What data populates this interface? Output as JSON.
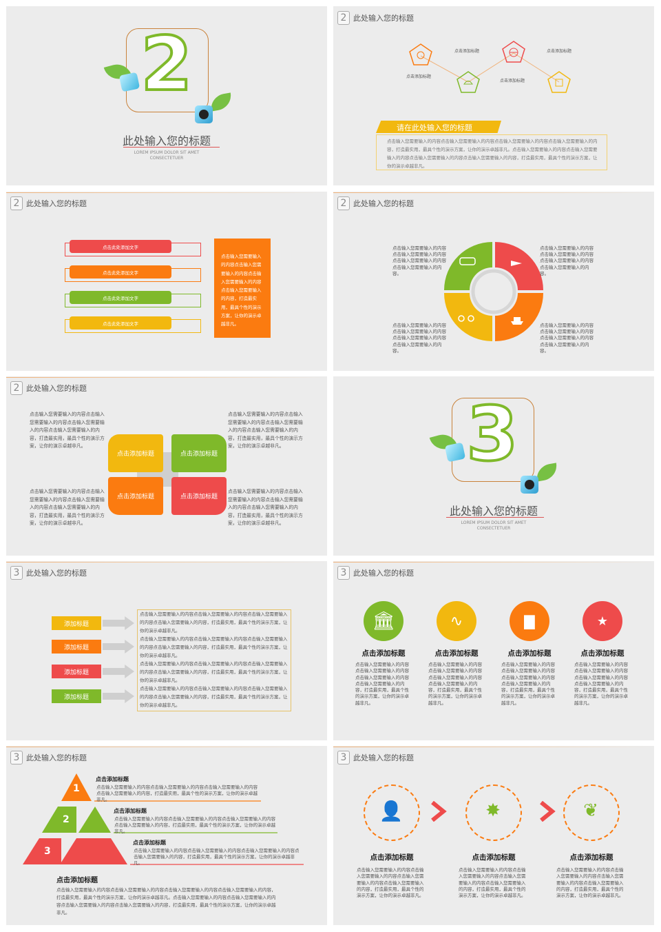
{
  "slides": {
    "s1": {
      "number": "2",
      "title": "此处输入您的标题",
      "sub1": "LOREM IPSUM DOLOR SIT AMET",
      "sub2": "CONSECTETUER"
    },
    "s2": {
      "number": "2",
      "header": "此处输入您的标题",
      "labels": [
        "点击添加标题",
        "点击添加标题",
        "点击添加标题",
        "点击添加标题"
      ],
      "banner": "请在此处输入您的标题",
      "body": "点击输入您需要输入的内容点击输入您需要输入的内容点击输入您需要输入的内容点击输入您需要输入的内容，打造最实用，最具个性的演示方案，让你的演示卓越非凡。点击输入您需要输入的内容点击输入您需要输入的内容点击输入您需要输入的内容点击输入您需要输入的内容，打造最实用，最具个性的演示方案，让你的演示卓越非凡。"
    },
    "s3": {
      "number": "2",
      "header": "此处输入您的标题",
      "bars": [
        "点击此处添加文字",
        "点击此处添加文字",
        "点击此处添加文字",
        "点击此处添加文字"
      ],
      "box_text": "点击输入您需要输入的内容点击输入您需要输入的内容点击输入您需要输入的内容点击输入您需要输入的内容，打造最实用，最具个性的演示方案，让你的演示卓越非凡。"
    },
    "s4": {
      "number": "2",
      "header": "此处输入您的标题",
      "texts": [
        "点击输入您需要输入的内容点击输入您需要输入的内容点击输入您需要输入的内容点击输入您需要输入的内容。",
        "点击输入您需要输入的内容点击输入您需要输入的内容点击输入您需要输入的内容点击输入您需要输入的内容。",
        "点击输入您需要输入的内容点击输入您需要输入的内容点击输入您需要输入的内容点击输入您需要输入的内容。",
        "点击输入您需要输入的内容点击输入您需要输入的内容点击输入您需要输入的内容点击输入您需要输入的内容。"
      ]
    },
    "s5": {
      "number": "2",
      "header": "此处输入您的标题",
      "tiles": [
        "点击添加标题",
        "点击添加标题",
        "点击添加标题",
        "点击添加标题"
      ],
      "texts": [
        "点击输入您需要输入的内容点击输入您需要输入的内容点击输入您需要输入的内容点击输入您需要输入的内容，打造最实用，最具个性的演示方案，让你的演示卓越非凡。",
        "点击输入您需要输入的内容点击输入您需要输入的内容点击输入您需要输入的内容点击输入您需要输入的内容，打造最实用，最具个性的演示方案，让你的演示卓越非凡。",
        "点击输入您需要输入的内容点击输入您需要输入的内容点击输入您需要输入的内容点击输入您需要输入的内容，打造最实用，最具个性的演示方案，让你的演示卓越非凡。",
        "点击输入您需要输入的内容点击输入您需要输入的内容点击输入您需要输入的内容点击输入您需要输入的内容，打造最实用，最具个性的演示方案，让你的演示卓越非凡。"
      ]
    },
    "s6": {
      "number": "3",
      "title": "此处输入您的标题",
      "sub1": "LOREM IPSUM DOLOR SIT AMET",
      "sub2": "CONSECTETUER"
    },
    "s7": {
      "number": "3",
      "header": "此处输入您的标题",
      "labels": [
        "添加标题",
        "添加标题",
        "添加标题",
        "添加标题"
      ],
      "text": "点击输入您需要输入的内容点击输入您需要输入的内容点击输入您需要输入的内容点击输入您需要输入的内容，打造最实用，最具个性的演示方案，让你的演示卓越非凡。"
    },
    "s8": {
      "number": "3",
      "header": "此处输入您的标题",
      "titles": [
        "点击添加标题",
        "点击添加标题",
        "点击添加标题",
        "点击添加标题"
      ],
      "text": "点击输入您需要输入的内容点击输入您需要输入的内容点击输入您需要输入的内容点击输入您需要输入的内容，打造最实用，最具个性的演示方案，让你的演示卓越非凡。"
    },
    "s9": {
      "number": "3",
      "header": "此处输入您的标题",
      "levels": [
        "1",
        "2",
        "3"
      ],
      "item_title": "点击添加标题",
      "item_text": "点击输入您需要输入的内容点击输入您需要输入的内容点击输入您需要输入的内容点击输入您需要输入的内容，打造最实用，最具个性的演示方案，让你的演示卓越非凡。",
      "bottom_title": "点击添加标题",
      "bottom_text": "点击输入您需要输入的内容点击输入您需要输入的内容点击输入您需要输入的内容点击输入您需要输入的内容，打造最实用，最具个性的演示方案，让你的演示卓越非凡。点击输入您需要输入的内容点击输入您需要输入的内容点击输入您需要输入的内容点击输入您需要输入的内容，打造最实用，最具个性的演示方案，让你的演示卓越非凡。"
    },
    "s10": {
      "number": "3",
      "header": "此处输入您的标题",
      "titles": [
        "点击添加标题",
        "点击添加标题",
        "点击添加标题"
      ],
      "text": "点击输入您需要输入的内容点击输入您需要输入的内容点击输入您需要输入的内容点击输入您需要输入的内容，打造最实用，最具个性的演示方案，让你的演示卓越非凡。"
    }
  },
  "colors": {
    "red": "#ee4b4b",
    "orange": "#fb7b10",
    "green": "#7fb92a",
    "yellow": "#f2b80f",
    "text": "#555555"
  }
}
